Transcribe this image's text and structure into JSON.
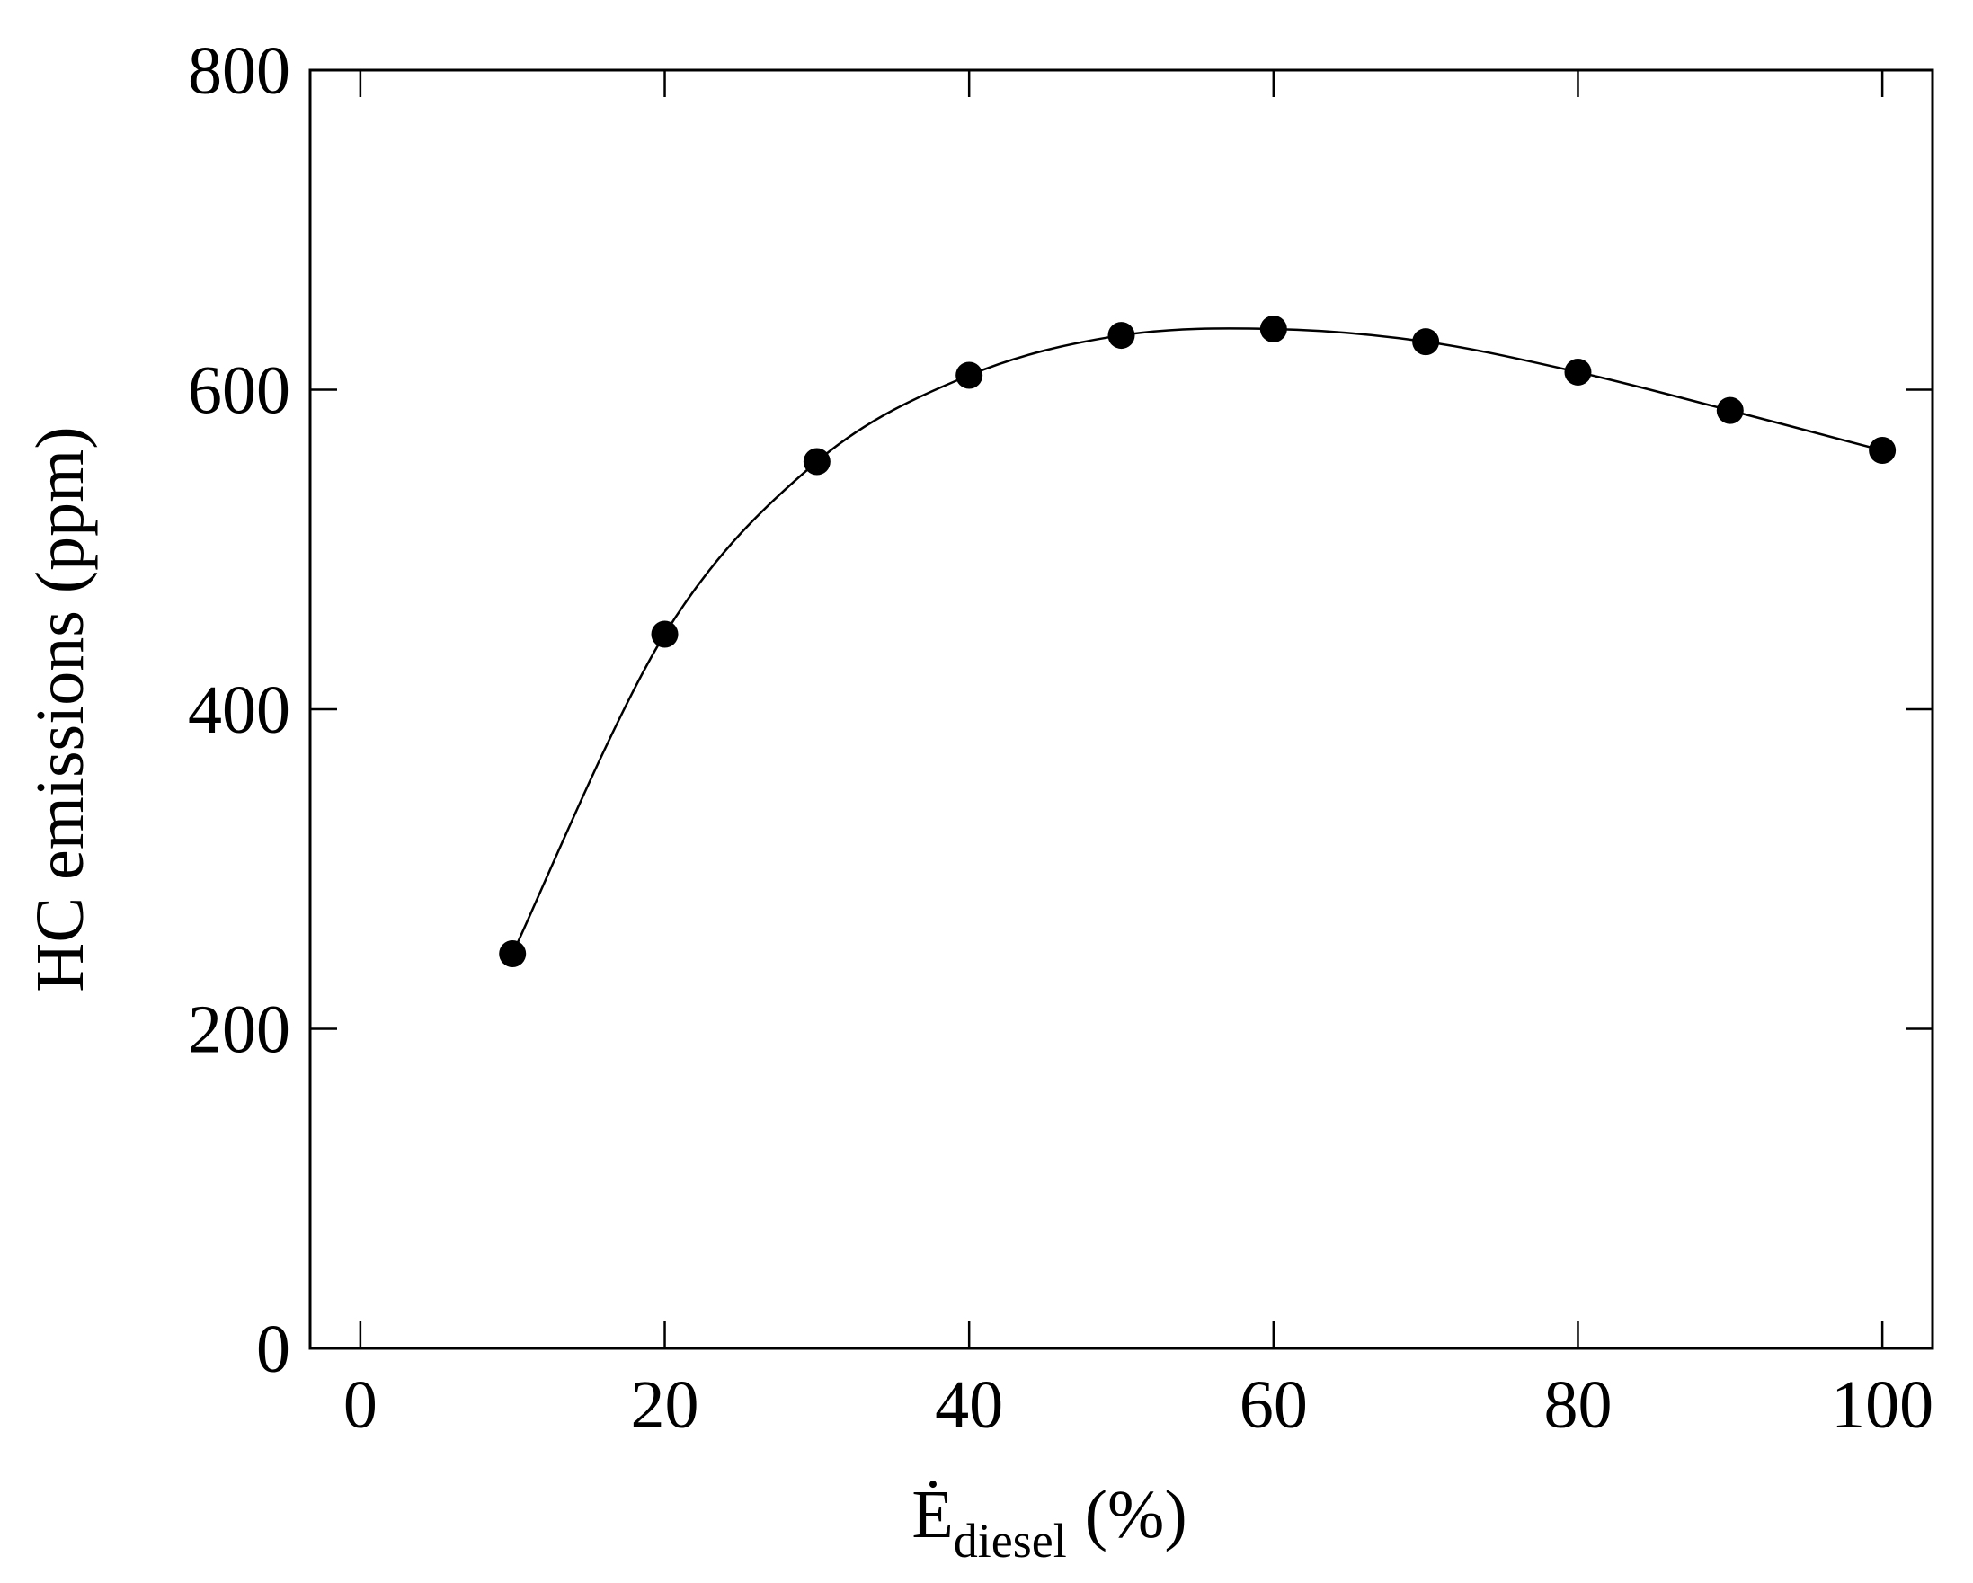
{
  "chart_data": {
    "type": "line",
    "x": [
      10,
      20,
      30,
      40,
      50,
      60,
      70,
      80,
      90,
      100
    ],
    "series": [
      {
        "values": [
          247,
          447,
          555,
          609,
          634,
          638,
          630,
          611,
          587,
          562
        ],
        "color": "#000000",
        "marker": "filled-circle",
        "line": "smooth"
      }
    ],
    "xlabel": {
      "main": "Ė",
      "subscript": "diesel",
      "unit": "(%)"
    },
    "ylabel": "HC emissions (ppm)",
    "xlim": [
      -3.3,
      103.3
    ],
    "ylim": [
      0,
      800
    ],
    "xticks": [
      0,
      20,
      40,
      60,
      80,
      100
    ],
    "yticks": [
      0,
      200,
      400,
      600,
      800
    ],
    "grid": false,
    "legend": "none"
  }
}
